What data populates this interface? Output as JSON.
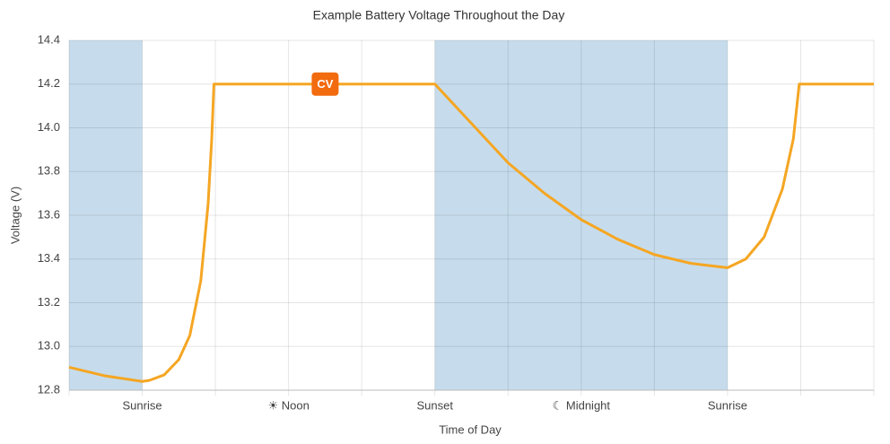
{
  "chart_data": {
    "type": "line",
    "title": "Example Battery Voltage Throughout the Day",
    "x_label": "Time of Day",
    "y_label": "Voltage (V)",
    "categories": [
      null,
      "Sunrise",
      null,
      "☀ Noon",
      null,
      "Sunset",
      null,
      "☾ Midnight",
      null,
      "Sunrise",
      null,
      null
    ],
    "xlim": [
      0,
      11
    ],
    "ylim": [
      12.8,
      14.4
    ],
    "yticks": [
      12.8,
      {
        "value": 13.0,
        "label": "13.0"
      },
      13.2,
      13.4,
      13.6,
      13.8,
      {
        "value": 14.0,
        "label": "14.0"
      },
      14.2,
      14.4
    ],
    "grid": true,
    "shaded_regions": [
      [
        0,
        1
      ],
      [
        5,
        9
      ]
    ],
    "shade_color": "#c6dcec",
    "series": [
      {
        "color": "#f5a623",
        "x": [
          0,
          0.5,
          1,
          1.1,
          1.3,
          1.5,
          1.65,
          1.8,
          1.9,
          1.95,
          1.98,
          5,
          5.5,
          6,
          6.5,
          7,
          7.5,
          8,
          8.5,
          9,
          9.25,
          9.5,
          9.75,
          9.9,
          9.98,
          11
        ],
        "values": [
          12.905,
          12.865,
          12.84,
          12.845,
          12.87,
          12.94,
          13.05,
          13.3,
          13.65,
          13.95,
          14.2,
          14.2,
          14.02,
          13.84,
          13.7,
          13.58,
          13.49,
          13.42,
          13.38,
          13.36,
          13.4,
          13.5,
          13.72,
          13.95,
          14.2,
          14.2
        ]
      }
    ],
    "annotation": {
      "text": "CV",
      "x": 3.5,
      "y": 14.2,
      "color": "#f26b0f"
    }
  }
}
